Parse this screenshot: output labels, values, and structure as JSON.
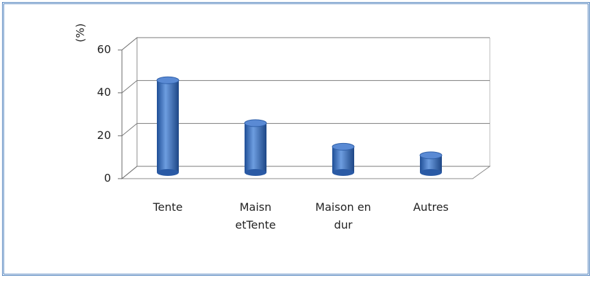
{
  "chart_data": {
    "type": "bar",
    "y_label": "(%)",
    "categories": [
      "Tente",
      "Maisn etTente",
      "Maison en dur",
      "Autres"
    ],
    "values": [
      43,
      23,
      12,
      8
    ],
    "color": "#3a6fc0",
    "ylim": [
      0,
      60
    ],
    "yticks": [
      0,
      20,
      40,
      60
    ],
    "grid": true
  }
}
